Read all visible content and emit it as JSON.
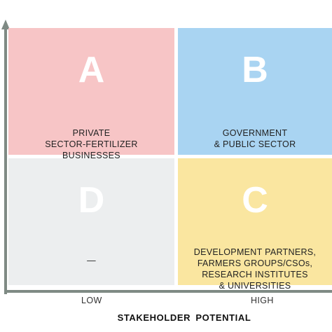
{
  "quadrants": [
    {
      "letter": "A",
      "text": "PRIVATE\nSECTOR-FERTILIZER\nBUSINESSES",
      "color": "#f7c5c6"
    },
    {
      "letter": "B",
      "text": "GOVERNMENT\n& PUBLIC SECTOR",
      "color": "#a9d4f2"
    },
    {
      "letter": "D",
      "text": "—",
      "color": "#eceeef"
    },
    {
      "letter": "C",
      "text": "DEVELOPMENT PARTNERS,\nFARMERS GROUPS/CSOs,\nRESEARCH INSTITUTES\n& UNIVERSITIES",
      "color": "#fae6a0"
    }
  ],
  "x_axis": {
    "title": "STAKEHOLDER POTENTIAL",
    "ticks": [
      "LOW",
      "HIGH"
    ]
  },
  "axis_color": "#7f8a84"
}
